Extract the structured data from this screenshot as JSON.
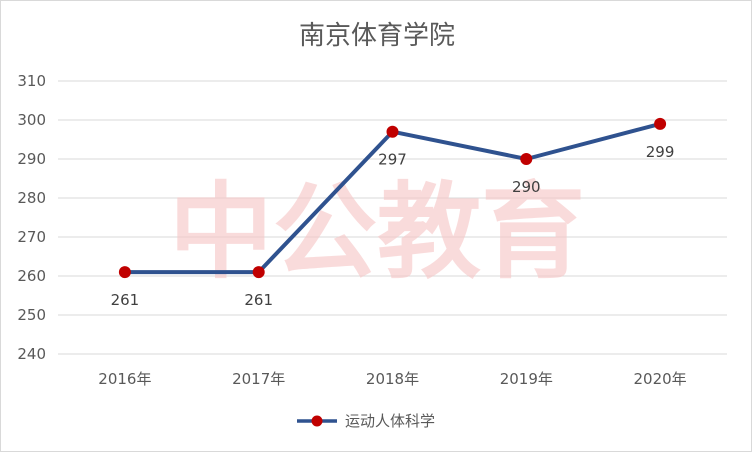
{
  "watermark": {
    "text": "中公教育",
    "color": "#f4b8b8"
  },
  "chart_data": {
    "type": "line",
    "title": "南京体育学院",
    "xlabel": "",
    "ylabel": "",
    "categories": [
      "2016年",
      "2017年",
      "2018年",
      "2019年",
      "2020年"
    ],
    "series": [
      {
        "name": "运动人体科学",
        "values": [
          261,
          261,
          297,
          290,
          299
        ],
        "line_color": "#2f528f",
        "marker_color": "#c00000"
      }
    ],
    "ylim": [
      240,
      310
    ],
    "yticks": [
      240,
      250,
      260,
      270,
      280,
      290,
      300,
      310
    ],
    "grid": true,
    "data_labels": true,
    "legend_position": "bottom"
  }
}
